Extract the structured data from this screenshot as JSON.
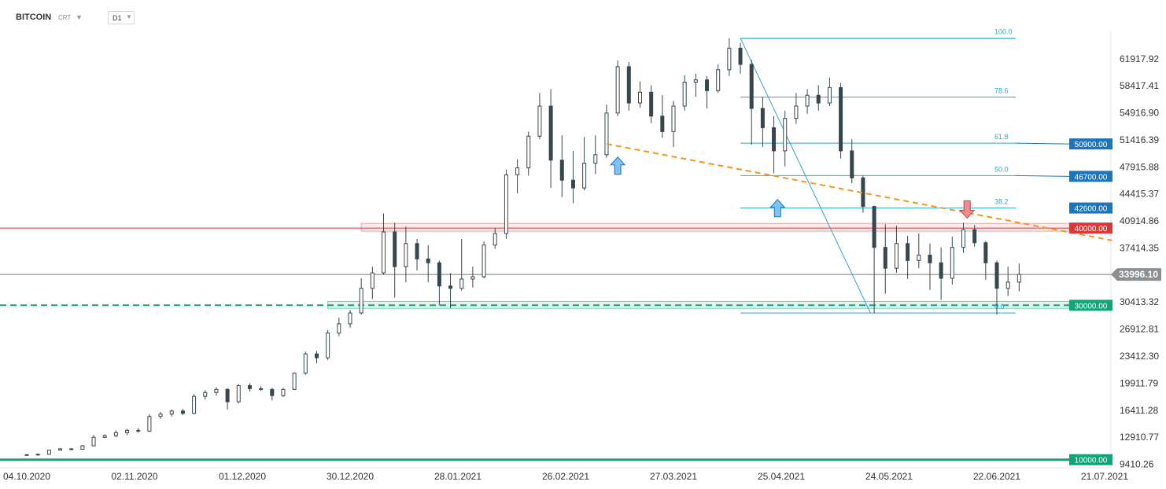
{
  "header": {
    "symbol": "BITCOIN",
    "subtype": "CRT",
    "timeframe": "D1"
  },
  "chart_data": {
    "type": "candlestick",
    "title": "BITCOIN",
    "xlabel": "",
    "ylabel": "",
    "ylim": [
      8600,
      65000
    ],
    "y_ticks": [
      "61917.92",
      "58417.41",
      "54916.90",
      "51416.39",
      "47915.88",
      "44415.37",
      "40914.86",
      "37414.35",
      "33913.84",
      "30413.32",
      "26912.81",
      "23412.30",
      "19911.79",
      "16411.28",
      "12910.77",
      "9410.26"
    ],
    "x_ticks": [
      "04.10.2020",
      "02.11.2020",
      "01.12.2020",
      "30.12.2020",
      "28.01.2021",
      "26.02.2021",
      "27.03.2021",
      "25.04.2021",
      "24.05.2021",
      "22.06.2021",
      "21.07.2021"
    ],
    "last_price": "33996.10",
    "level_tags": [
      {
        "text": "50900.00",
        "value": 50900,
        "color": "#1a75bb"
      },
      {
        "text": "46700.00",
        "value": 46700,
        "color": "#1a75bb"
      },
      {
        "text": "42600.00",
        "value": 42600,
        "color": "#1a75bb"
      },
      {
        "text": "40000.00",
        "value": 40000,
        "color": "#d93838"
      },
      {
        "text": "30000.00",
        "value": 30000,
        "color": "#0ca678"
      },
      {
        "text": "10000.00",
        "value": 10000,
        "color": "#0ca678"
      }
    ],
    "fibonacci": {
      "high": 64600,
      "low": 29000,
      "start_date": "14.04.2021",
      "end_date": "19.05.2021",
      "levels": [
        {
          "label": "100.0",
          "value": 64600
        },
        {
          "label": "78.6",
          "value": 56983
        },
        {
          "label": "61.8",
          "value": 50999
        },
        {
          "label": "50.0",
          "value": 46800
        },
        {
          "label": "38.2",
          "value": 42601
        },
        {
          "label": "0.0",
          "value": 29000
        }
      ]
    },
    "trendline": {
      "start_date": "09.03.2021",
      "start_value": 50900,
      "end_date": "23.07.2021",
      "end_value": 38400
    },
    "resistance_zone": {
      "start_date": "02.01.2021",
      "low": 39600,
      "high": 40600
    },
    "support_zone": {
      "start_date": "24.12.2020",
      "low": 29600,
      "high": 30500
    },
    "signals": [
      {
        "type": "up",
        "date": "12.03.2021",
        "value": 49200
      },
      {
        "type": "up",
        "date": "24.04.2021",
        "value": 43700
      },
      {
        "type": "down",
        "date": "14.06.2021",
        "value": 41300
      }
    ],
    "candles": [
      {
        "date": "2020-10-04",
        "o": 10600,
        "h": 10700,
        "l": 10500,
        "c": 10650
      },
      {
        "date": "2020-10-07",
        "o": 10650,
        "h": 10800,
        "l": 10550,
        "c": 10700
      },
      {
        "date": "2020-10-10",
        "o": 10700,
        "h": 11300,
        "l": 10650,
        "c": 11250
      },
      {
        "date": "2020-10-13",
        "o": 11250,
        "h": 11500,
        "l": 11200,
        "c": 11400
      },
      {
        "date": "2020-10-16",
        "o": 11400,
        "h": 11500,
        "l": 11250,
        "c": 11350
      },
      {
        "date": "2020-10-19",
        "o": 11350,
        "h": 11900,
        "l": 11300,
        "c": 11800
      },
      {
        "date": "2020-10-22",
        "o": 11800,
        "h": 13200,
        "l": 11700,
        "c": 12900
      },
      {
        "date": "2020-10-25",
        "o": 12900,
        "h": 13300,
        "l": 12800,
        "c": 13100
      },
      {
        "date": "2020-10-28",
        "o": 13100,
        "h": 13800,
        "l": 12900,
        "c": 13500
      },
      {
        "date": "2020-10-31",
        "o": 13500,
        "h": 14000,
        "l": 13200,
        "c": 13800
      },
      {
        "date": "2020-11-03",
        "o": 13800,
        "h": 14100,
        "l": 13500,
        "c": 13700
      },
      {
        "date": "2020-11-06",
        "o": 13700,
        "h": 15900,
        "l": 13600,
        "c": 15600
      },
      {
        "date": "2020-11-09",
        "o": 15600,
        "h": 16200,
        "l": 15300,
        "c": 15900
      },
      {
        "date": "2020-11-12",
        "o": 15900,
        "h": 16500,
        "l": 15600,
        "c": 16300
      },
      {
        "date": "2020-11-15",
        "o": 16300,
        "h": 16600,
        "l": 15800,
        "c": 16000
      },
      {
        "date": "2020-11-18",
        "o": 16000,
        "h": 18500,
        "l": 15900,
        "c": 18200
      },
      {
        "date": "2020-11-21",
        "o": 18200,
        "h": 19000,
        "l": 17800,
        "c": 18700
      },
      {
        "date": "2020-11-24",
        "o": 18700,
        "h": 19400,
        "l": 18300,
        "c": 19100
      },
      {
        "date": "2020-11-27",
        "o": 19100,
        "h": 19300,
        "l": 16500,
        "c": 17500
      },
      {
        "date": "2020-11-30",
        "o": 17500,
        "h": 19800,
        "l": 17300,
        "c": 19600
      },
      {
        "date": "2020-12-03",
        "o": 19600,
        "h": 19900,
        "l": 18800,
        "c": 19200
      },
      {
        "date": "2020-12-06",
        "o": 19200,
        "h": 19500,
        "l": 18900,
        "c": 19100
      },
      {
        "date": "2020-12-09",
        "o": 19100,
        "h": 19300,
        "l": 17700,
        "c": 18300
      },
      {
        "date": "2020-12-12",
        "o": 18300,
        "h": 19300,
        "l": 18100,
        "c": 19100
      },
      {
        "date": "2020-12-15",
        "o": 19100,
        "h": 21300,
        "l": 19000,
        "c": 21200
      },
      {
        "date": "2020-12-18",
        "o": 21200,
        "h": 24000,
        "l": 21000,
        "c": 23700
      },
      {
        "date": "2020-12-21",
        "o": 23700,
        "h": 24100,
        "l": 22500,
        "c": 23200
      },
      {
        "date": "2020-12-24",
        "o": 23200,
        "h": 26800,
        "l": 22900,
        "c": 26400
      },
      {
        "date": "2020-12-27",
        "o": 26400,
        "h": 28400,
        "l": 26000,
        "c": 27600
      },
      {
        "date": "2020-12-30",
        "o": 27600,
        "h": 29400,
        "l": 27100,
        "c": 29000
      },
      {
        "date": "2021-01-02",
        "o": 29000,
        "h": 33500,
        "l": 28800,
        "c": 32200
      },
      {
        "date": "2021-01-05",
        "o": 32200,
        "h": 35000,
        "l": 30800,
        "c": 34200
      },
      {
        "date": "2021-01-08",
        "o": 34200,
        "h": 41900,
        "l": 34000,
        "c": 39500
      },
      {
        "date": "2021-01-11",
        "o": 39500,
        "h": 40700,
        "l": 31000,
        "c": 35000
      },
      {
        "date": "2021-01-14",
        "o": 35000,
        "h": 40200,
        "l": 33000,
        "c": 38000
      },
      {
        "date": "2021-01-17",
        "o": 38000,
        "h": 38600,
        "l": 34500,
        "c": 36000
      },
      {
        "date": "2021-01-20",
        "o": 36000,
        "h": 37800,
        "l": 33000,
        "c": 35500
      },
      {
        "date": "2021-01-23",
        "o": 35500,
        "h": 35800,
        "l": 30000,
        "c": 32500
      },
      {
        "date": "2021-01-26",
        "o": 32500,
        "h": 34200,
        "l": 29600,
        "c": 32200
      },
      {
        "date": "2021-01-29",
        "o": 32200,
        "h": 38600,
        "l": 31900,
        "c": 33400
      },
      {
        "date": "2021-02-01",
        "o": 33400,
        "h": 35000,
        "l": 32300,
        "c": 33700
      },
      {
        "date": "2021-02-04",
        "o": 33700,
        "h": 38300,
        "l": 33500,
        "c": 37800
      },
      {
        "date": "2021-02-07",
        "o": 37800,
        "h": 40000,
        "l": 37300,
        "c": 39300
      },
      {
        "date": "2021-02-10",
        "o": 39300,
        "h": 47600,
        "l": 38600,
        "c": 46900
      },
      {
        "date": "2021-02-13",
        "o": 46900,
        "h": 48900,
        "l": 44500,
        "c": 47800
      },
      {
        "date": "2021-02-16",
        "o": 47800,
        "h": 52500,
        "l": 46800,
        "c": 51900
      },
      {
        "date": "2021-02-19",
        "o": 51900,
        "h": 57500,
        "l": 51500,
        "c": 55800
      },
      {
        "date": "2021-02-22",
        "o": 55800,
        "h": 58000,
        "l": 45200,
        "c": 48800
      },
      {
        "date": "2021-02-25",
        "o": 48800,
        "h": 52000,
        "l": 44000,
        "c": 46200
      },
      {
        "date": "2021-02-28",
        "o": 46200,
        "h": 50000,
        "l": 43200,
        "c": 45200
      },
      {
        "date": "2021-03-03",
        "o": 45200,
        "h": 51800,
        "l": 44900,
        "c": 48400
      },
      {
        "date": "2021-03-06",
        "o": 48400,
        "h": 52000,
        "l": 47000,
        "c": 49500
      },
      {
        "date": "2021-03-09",
        "o": 49500,
        "h": 56000,
        "l": 49100,
        "c": 54900
      },
      {
        "date": "2021-03-12",
        "o": 54900,
        "h": 61700,
        "l": 54500,
        "c": 60900
      },
      {
        "date": "2021-03-15",
        "o": 60900,
        "h": 61500,
        "l": 55200,
        "c": 56200
      },
      {
        "date": "2021-03-18",
        "o": 56200,
        "h": 59000,
        "l": 55600,
        "c": 57600
      },
      {
        "date": "2021-03-21",
        "o": 57600,
        "h": 58500,
        "l": 53600,
        "c": 54500
      },
      {
        "date": "2021-03-24",
        "o": 54500,
        "h": 57200,
        "l": 51700,
        "c": 52500
      },
      {
        "date": "2021-03-27",
        "o": 52500,
        "h": 56500,
        "l": 50500,
        "c": 55800
      },
      {
        "date": "2021-03-30",
        "o": 55800,
        "h": 59800,
        "l": 55200,
        "c": 58900
      },
      {
        "date": "2021-04-02",
        "o": 58900,
        "h": 60000,
        "l": 57000,
        "c": 59200
      },
      {
        "date": "2021-04-05",
        "o": 59200,
        "h": 59700,
        "l": 55500,
        "c": 57800
      },
      {
        "date": "2021-04-08",
        "o": 57800,
        "h": 61200,
        "l": 57500,
        "c": 60500
      },
      {
        "date": "2021-04-11",
        "o": 60500,
        "h": 64600,
        "l": 59700,
        "c": 63300
      },
      {
        "date": "2021-04-14",
        "o": 63300,
        "h": 64000,
        "l": 60000,
        "c": 61200
      },
      {
        "date": "2021-04-17",
        "o": 61200,
        "h": 61800,
        "l": 50800,
        "c": 55500
      },
      {
        "date": "2021-04-20",
        "o": 55500,
        "h": 57000,
        "l": 50500,
        "c": 53000
      },
      {
        "date": "2021-04-23",
        "o": 53000,
        "h": 54500,
        "l": 47100,
        "c": 50000
      },
      {
        "date": "2021-04-26",
        "o": 50000,
        "h": 55200,
        "l": 48000,
        "c": 54200
      },
      {
        "date": "2021-04-29",
        "o": 54200,
        "h": 57500,
        "l": 53500,
        "c": 55800
      },
      {
        "date": "2021-05-02",
        "o": 55800,
        "h": 58000,
        "l": 54800,
        "c": 57200
      },
      {
        "date": "2021-05-05",
        "o": 57200,
        "h": 58500,
        "l": 55200,
        "c": 56200
      },
      {
        "date": "2021-05-08",
        "o": 56200,
        "h": 59500,
        "l": 55800,
        "c": 58200
      },
      {
        "date": "2021-05-11",
        "o": 58200,
        "h": 58800,
        "l": 49000,
        "c": 50000
      },
      {
        "date": "2021-05-14",
        "o": 50000,
        "h": 51500,
        "l": 45800,
        "c": 46500
      },
      {
        "date": "2021-05-17",
        "o": 46500,
        "h": 46800,
        "l": 42000,
        "c": 42800
      },
      {
        "date": "2021-05-20",
        "o": 42800,
        "h": 42900,
        "l": 29000,
        "c": 37500
      },
      {
        "date": "2021-05-23",
        "o": 37500,
        "h": 40500,
        "l": 31500,
        "c": 34800
      },
      {
        "date": "2021-05-26",
        "o": 34800,
        "h": 40300,
        "l": 34200,
        "c": 38000
      },
      {
        "date": "2021-05-29",
        "o": 38000,
        "h": 39000,
        "l": 33400,
        "c": 35800
      },
      {
        "date": "2021-06-01",
        "o": 35800,
        "h": 39300,
        "l": 34800,
        "c": 36500
      },
      {
        "date": "2021-06-04",
        "o": 36500,
        "h": 38000,
        "l": 32000,
        "c": 35500
      },
      {
        "date": "2021-06-07",
        "o": 35500,
        "h": 37500,
        "l": 30700,
        "c": 33500
      },
      {
        "date": "2021-06-10",
        "o": 33500,
        "h": 38900,
        "l": 32700,
        "c": 37500
      },
      {
        "date": "2021-06-13",
        "o": 37500,
        "h": 40700,
        "l": 36800,
        "c": 39800
      },
      {
        "date": "2021-06-16",
        "o": 39800,
        "h": 40400,
        "l": 37600,
        "c": 38100
      },
      {
        "date": "2021-06-19",
        "o": 38100,
        "h": 38300,
        "l": 33300,
        "c": 35500
      },
      {
        "date": "2021-06-22",
        "o": 35500,
        "h": 35800,
        "l": 28800,
        "c": 32200
      },
      {
        "date": "2021-06-25",
        "o": 32200,
        "h": 35000,
        "l": 31200,
        "c": 33000
      },
      {
        "date": "2021-06-28",
        "o": 33000,
        "h": 35400,
        "l": 31800,
        "c": 34000
      }
    ]
  }
}
